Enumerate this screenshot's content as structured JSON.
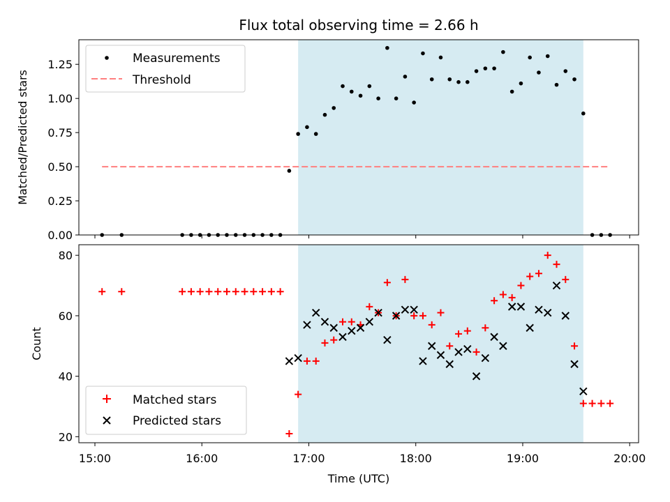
{
  "chart_data": [
    {
      "type": "scatter",
      "title": "Flux total observing time = 2.66 h",
      "ylabel": "Matched/Predicted stars",
      "ylim": [
        0,
        1.43
      ],
      "yticks": [
        0.0,
        0.25,
        0.5,
        0.75,
        1.0,
        1.25
      ],
      "ytick_labels": [
        "0.00",
        "0.25",
        "0.50",
        "0.75",
        "1.00",
        "1.25"
      ],
      "xlim": [
        "14:51",
        "20:05"
      ],
      "grid": false,
      "legend_position": "top-left",
      "legend": [
        "Measurements",
        "Threshold"
      ],
      "shaded_region": {
        "x": [
          "16:54",
          "19:34"
        ],
        "color": "#add8e6"
      },
      "threshold": {
        "y": 0.5,
        "x": [
          "15:04",
          "19:48"
        ],
        "style": "dashed",
        "color": "#ff7f7f"
      },
      "series": [
        {
          "name": "Measurements",
          "marker": "dot",
          "color": "#000000",
          "points": [
            [
              "15:04",
              0.0
            ],
            [
              "15:15",
              0.0
            ],
            [
              "15:49",
              0.0
            ],
            [
              "15:54",
              0.0
            ],
            [
              "15:59",
              0.0
            ],
            [
              "16:04",
              0.0
            ],
            [
              "16:09",
              0.0
            ],
            [
              "16:14",
              0.0
            ],
            [
              "16:19",
              0.0
            ],
            [
              "16:24",
              0.0
            ],
            [
              "16:29",
              0.0
            ],
            [
              "16:34",
              0.0
            ],
            [
              "16:39",
              0.0
            ],
            [
              "16:44",
              0.0
            ],
            [
              "16:49",
              0.47
            ],
            [
              "16:54",
              0.74
            ],
            [
              "16:59",
              0.79
            ],
            [
              "17:04",
              0.74
            ],
            [
              "17:09",
              0.88
            ],
            [
              "17:14",
              0.93
            ],
            [
              "17:19",
              1.09
            ],
            [
              "17:24",
              1.05
            ],
            [
              "17:29",
              1.02
            ],
            [
              "17:34",
              1.09
            ],
            [
              "17:39",
              1.0
            ],
            [
              "17:44",
              1.37
            ],
            [
              "17:49",
              1.0
            ],
            [
              "17:54",
              1.16
            ],
            [
              "17:59",
              0.97
            ],
            [
              "18:04",
              1.33
            ],
            [
              "18:09",
              1.14
            ],
            [
              "18:14",
              1.3
            ],
            [
              "18:19",
              1.14
            ],
            [
              "18:24",
              1.12
            ],
            [
              "18:29",
              1.12
            ],
            [
              "18:34",
              1.2
            ],
            [
              "18:39",
              1.22
            ],
            [
              "18:44",
              1.22
            ],
            [
              "18:49",
              1.34
            ],
            [
              "18:54",
              1.05
            ],
            [
              "18:59",
              1.11
            ],
            [
              "19:04",
              1.3
            ],
            [
              "19:09",
              1.19
            ],
            [
              "19:14",
              1.31
            ],
            [
              "19:19",
              1.1
            ],
            [
              "19:24",
              1.2
            ],
            [
              "19:29",
              1.14
            ],
            [
              "19:34",
              0.89
            ],
            [
              "19:39",
              0.0
            ],
            [
              "19:44",
              0.0
            ],
            [
              "19:49",
              0.0
            ]
          ]
        }
      ]
    },
    {
      "type": "scatter",
      "ylabel": "Count",
      "xlabel": "Time (UTC)",
      "ylim": [
        18,
        83.5
      ],
      "yticks": [
        20,
        40,
        60,
        80
      ],
      "ytick_labels": [
        "20",
        "40",
        "60",
        "80"
      ],
      "xlim": [
        "14:51",
        "20:05"
      ],
      "xticks": [
        "15:00",
        "16:00",
        "17:00",
        "18:00",
        "19:00",
        "20:00"
      ],
      "xtick_labels": [
        "15:00",
        "16:00",
        "17:00",
        "18:00",
        "19:00",
        "20:00"
      ],
      "grid": false,
      "legend_position": "bottom-left",
      "legend": [
        "Matched stars",
        "Predicted stars"
      ],
      "shaded_region": {
        "x": [
          "16:54",
          "19:34"
        ],
        "color": "#add8e6"
      },
      "series": [
        {
          "name": "Matched stars",
          "marker": "plus",
          "color": "#ff0000",
          "points": [
            [
              "15:04",
              68
            ],
            [
              "15:15",
              68
            ],
            [
              "15:49",
              68
            ],
            [
              "15:54",
              68
            ],
            [
              "15:59",
              68
            ],
            [
              "16:04",
              68
            ],
            [
              "16:09",
              68
            ],
            [
              "16:14",
              68
            ],
            [
              "16:19",
              68
            ],
            [
              "16:24",
              68
            ],
            [
              "16:29",
              68
            ],
            [
              "16:34",
              68
            ],
            [
              "16:39",
              68
            ],
            [
              "16:44",
              68
            ],
            [
              "16:49",
              21
            ],
            [
              "16:54",
              34
            ],
            [
              "16:59",
              45
            ],
            [
              "17:04",
              45
            ],
            [
              "17:09",
              51
            ],
            [
              "17:14",
              52
            ],
            [
              "17:19",
              58
            ],
            [
              "17:24",
              58
            ],
            [
              "17:29",
              57
            ],
            [
              "17:34",
              63
            ],
            [
              "17:39",
              61
            ],
            [
              "17:44",
              71
            ],
            [
              "17:49",
              60
            ],
            [
              "17:54",
              72
            ],
            [
              "17:59",
              60
            ],
            [
              "18:04",
              60
            ],
            [
              "18:09",
              57
            ],
            [
              "18:14",
              61
            ],
            [
              "18:19",
              50
            ],
            [
              "18:24",
              54
            ],
            [
              "18:29",
              55
            ],
            [
              "18:34",
              48
            ],
            [
              "18:39",
              56
            ],
            [
              "18:44",
              65
            ],
            [
              "18:49",
              67
            ],
            [
              "18:54",
              66
            ],
            [
              "18:59",
              70
            ],
            [
              "19:04",
              73
            ],
            [
              "19:09",
              74
            ],
            [
              "19:14",
              80
            ],
            [
              "19:19",
              77
            ],
            [
              "19:24",
              72
            ],
            [
              "19:29",
              50
            ],
            [
              "19:34",
              31
            ],
            [
              "19:39",
              31
            ],
            [
              "19:44",
              31
            ],
            [
              "19:49",
              31
            ]
          ]
        },
        {
          "name": "Predicted stars",
          "marker": "x",
          "color": "#000000",
          "points": [
            [
              "16:49",
              45
            ],
            [
              "16:54",
              46
            ],
            [
              "16:59",
              57
            ],
            [
              "17:04",
              61
            ],
            [
              "17:09",
              58
            ],
            [
              "17:14",
              56
            ],
            [
              "17:19",
              53
            ],
            [
              "17:24",
              55
            ],
            [
              "17:29",
              56
            ],
            [
              "17:34",
              58
            ],
            [
              "17:39",
              61
            ],
            [
              "17:44",
              52
            ],
            [
              "17:49",
              60
            ],
            [
              "17:54",
              62
            ],
            [
              "17:59",
              62
            ],
            [
              "18:04",
              45
            ],
            [
              "18:09",
              50
            ],
            [
              "18:14",
              47
            ],
            [
              "18:19",
              44
            ],
            [
              "18:24",
              48
            ],
            [
              "18:29",
              49
            ],
            [
              "18:34",
              40
            ],
            [
              "18:39",
              46
            ],
            [
              "18:44",
              53
            ],
            [
              "18:49",
              50
            ],
            [
              "18:54",
              63
            ],
            [
              "18:59",
              63
            ],
            [
              "19:04",
              56
            ],
            [
              "19:09",
              62
            ],
            [
              "19:14",
              61
            ],
            [
              "19:19",
              70
            ],
            [
              "19:24",
              60
            ],
            [
              "19:29",
              44
            ],
            [
              "19:34",
              35
            ]
          ]
        }
      ]
    }
  ]
}
